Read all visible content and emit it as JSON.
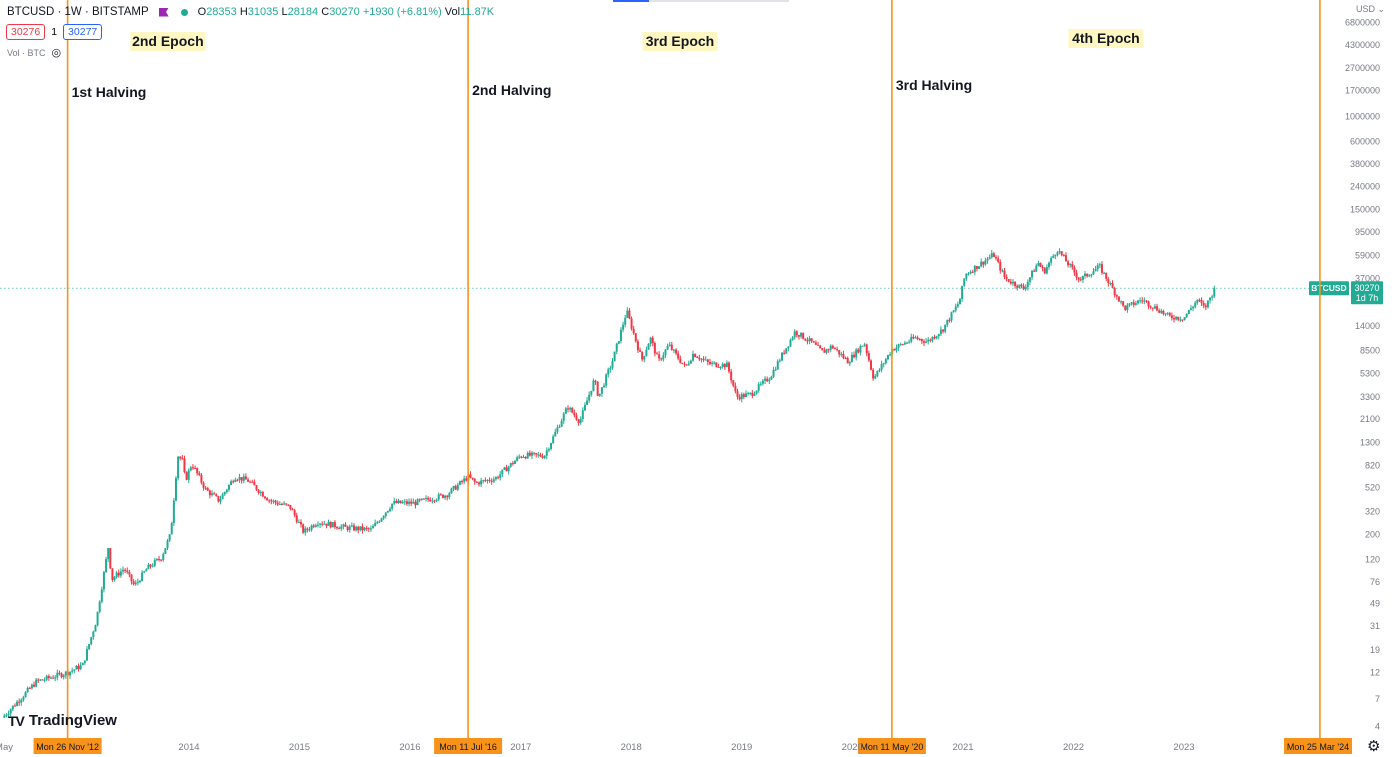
{
  "header": {
    "symbol": "BTCUSD · 1W · BITSTAMP",
    "open_label": "O",
    "open": "28353",
    "high_label": "H",
    "high": "31035",
    "low_label": "L",
    "low": "28184",
    "close_label": "C",
    "close": "30270",
    "change": "+1930 (+6.81%)",
    "vol_label": "Vol",
    "vol": "11.87K",
    "sell_price": "30276",
    "spread": "1",
    "buy_price": "30277",
    "volume_indicator": "Vol · BTC",
    "currency": "USD"
  },
  "branding": {
    "logo_text": "TradingView"
  },
  "chart_data": {
    "type": "candlestick",
    "title": "BTCUSD · 1W · BITSTAMP",
    "scale": "log",
    "ylim": [
      4,
      8500000
    ],
    "y_ticks": [
      4,
      7,
      12,
      19,
      31,
      49,
      76,
      120,
      200,
      320,
      520,
      820,
      1300,
      2100,
      3300,
      5300,
      8500,
      14000,
      37000,
      59000,
      95000,
      150000,
      240000,
      380000,
      600000,
      1000000,
      1700000,
      2700000,
      4300000,
      6800000
    ],
    "y_ticks_hidden": [
      23000
    ],
    "x_ticks": [
      {
        "label": "May",
        "date": "2012-05-01"
      },
      {
        "label": "2014",
        "date": "2014-01-01"
      },
      {
        "label": "2015",
        "date": "2015-01-01"
      },
      {
        "label": "2016",
        "date": "2016-01-01"
      },
      {
        "label": "2017",
        "date": "2017-01-01"
      },
      {
        "label": "2018",
        "date": "2018-01-01"
      },
      {
        "label": "2019",
        "date": "2019-01-01"
      },
      {
        "label": "2020",
        "date": "2020-01-01"
      },
      {
        "label": "2021",
        "date": "2021-01-01"
      },
      {
        "label": "2022",
        "date": "2022-01-01"
      },
      {
        "label": "2023",
        "date": "2023-01-01"
      }
    ],
    "halvings": [
      {
        "name": "1st Halving",
        "date": "2012-11-26",
        "date_label": "Mon 26 Nov '12"
      },
      {
        "name": "2nd Halving",
        "date": "2016-07-11",
        "date_label": "Mon 11 Jul '16"
      },
      {
        "name": "3rd Halving",
        "date": "2020-05-11",
        "date_label": "Mon 11 May '20"
      },
      {
        "name": "",
        "date": "2024-03-25",
        "date_label": "Mon 25 Mar '24"
      }
    ],
    "epochs": [
      {
        "label": "2nd Epoch",
        "from": "2012-11-26",
        "to": "2016-07-11"
      },
      {
        "label": "3rd Epoch",
        "from": "2016-07-11",
        "to": "2020-05-11"
      },
      {
        "label": "4th Epoch",
        "from": "2020-05-11",
        "to": "2024-03-25"
      }
    ],
    "last_price": {
      "symbol": "BTCUSD",
      "value": 30270,
      "countdown": "1d 7h"
    },
    "price_path": [
      [
        "2012-05-01",
        5
      ],
      [
        "2012-08-15",
        10
      ],
      [
        "2012-11-26",
        12
      ],
      [
        "2013-01-15",
        14
      ],
      [
        "2013-03-01",
        35
      ],
      [
        "2013-04-10",
        160
      ],
      [
        "2013-04-20",
        80
      ],
      [
        "2013-06-01",
        100
      ],
      [
        "2013-07-05",
        70
      ],
      [
        "2013-08-15",
        100
      ],
      [
        "2013-10-01",
        125
      ],
      [
        "2013-11-01",
        200
      ],
      [
        "2013-11-25",
        1000
      ],
      [
        "2013-12-10",
        900
      ],
      [
        "2013-12-20",
        600
      ],
      [
        "2014-01-10",
        850
      ],
      [
        "2014-02-25",
        500
      ],
      [
        "2014-04-10",
        400
      ],
      [
        "2014-06-01",
        650
      ],
      [
        "2014-07-15",
        600
      ],
      [
        "2014-09-25",
        400
      ],
      [
        "2014-12-01",
        350
      ],
      [
        "2015-01-15",
        210
      ],
      [
        "2015-03-01",
        260
      ],
      [
        "2015-06-01",
        230
      ],
      [
        "2015-08-25",
        220
      ],
      [
        "2015-11-05",
        380
      ],
      [
        "2016-01-15",
        380
      ],
      [
        "2016-05-01",
        450
      ],
      [
        "2016-07-11",
        650
      ],
      [
        "2016-08-05",
        570
      ],
      [
        "2016-10-10",
        630
      ],
      [
        "2017-01-01",
        1000
      ],
      [
        "2017-03-20",
        1000
      ],
      [
        "2017-06-05",
        2700
      ],
      [
        "2017-07-15",
        2000
      ],
      [
        "2017-09-01",
        4700
      ],
      [
        "2017-09-15",
        3300
      ],
      [
        "2017-11-01",
        7000
      ],
      [
        "2017-12-17",
        19000
      ],
      [
        "2018-02-05",
        7000
      ],
      [
        "2018-03-05",
        11000
      ],
      [
        "2018-04-01",
        6800
      ],
      [
        "2018-05-05",
        9500
      ],
      [
        "2018-06-29",
        6000
      ],
      [
        "2018-07-25",
        8000
      ],
      [
        "2018-09-15",
        6500
      ],
      [
        "2018-11-14",
        6300
      ],
      [
        "2018-12-15",
        3300
      ],
      [
        "2019-02-01",
        3500
      ],
      [
        "2019-04-05",
        5000
      ],
      [
        "2019-06-26",
        12500
      ],
      [
        "2019-08-20",
        10000
      ],
      [
        "2019-09-25",
        8200
      ],
      [
        "2019-10-26",
        9300
      ],
      [
        "2019-12-18",
        6800
      ],
      [
        "2020-02-10",
        10000
      ],
      [
        "2020-03-12",
        4800
      ],
      [
        "2020-05-11",
        8700
      ],
      [
        "2020-07-27",
        11000
      ],
      [
        "2020-09-05",
        10200
      ],
      [
        "2020-10-25",
        13000
      ],
      [
        "2020-12-20",
        23000
      ],
      [
        "2021-01-08",
        40000
      ],
      [
        "2021-04-12",
        60000
      ],
      [
        "2021-05-20",
        37000
      ],
      [
        "2021-07-20",
        30000
      ],
      [
        "2021-09-06",
        51000
      ],
      [
        "2021-09-25",
        42000
      ],
      [
        "2021-11-08",
        67000
      ],
      [
        "2022-01-22",
        36000
      ],
      [
        "2022-03-28",
        47000
      ],
      [
        "2022-06-18",
        20000
      ],
      [
        "2022-08-14",
        24000
      ],
      [
        "2022-10-10",
        19500
      ],
      [
        "2022-11-10",
        17000
      ],
      [
        "2022-12-31",
        16500
      ],
      [
        "2023-02-15",
        24000
      ],
      [
        "2023-03-10",
        20000
      ],
      [
        "2023-04-08",
        28353
      ],
      [
        "2023-04-14",
        30270
      ]
    ]
  }
}
